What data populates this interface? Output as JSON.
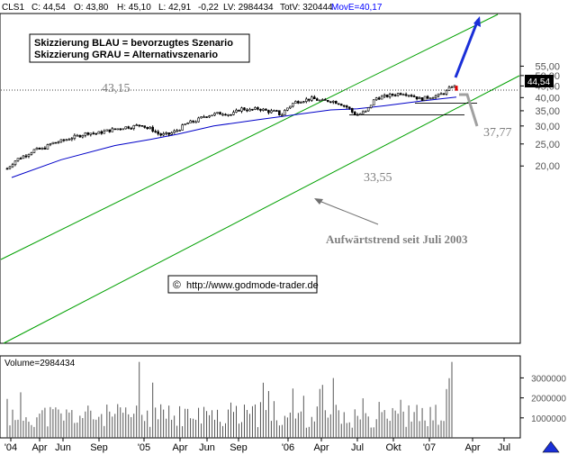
{
  "header": {
    "symbol": "CLS1",
    "close": "C: 44,54",
    "open": "O: 43,80",
    "high": "H: 45,10",
    "low": "L: 42,91",
    "change": "-0,22",
    "lv": "LV: 2984434",
    "totv": "TotV: 320444",
    "move": "MovE=40,17"
  },
  "legend": {
    "line1": "Skizzierung BLAU = bevorzugtes Szenario",
    "line2": "Skizzierung GRAU = Alternativszenario"
  },
  "annotations": {
    "level_4315": "43,15",
    "level_3777": "37,77",
    "level_3355": "33,55",
    "trend": "Aufwärtstrend seit Juli 2003",
    "copyright": "http://www.godmode-trader.de",
    "last_price": "44,54"
  },
  "volume_label": "Volume=2984434",
  "colors": {
    "channel": "#00a000",
    "ma": "#0000c8",
    "blue_scenario": "#1a2fd8",
    "grey_scenario": "#a0a0a0",
    "candle": "#000000",
    "last_badge": "#000000",
    "red_mark": "#e00000"
  },
  "chart_data": [
    {
      "type": "candlestick",
      "scale": "log",
      "x_tick_labels": [
        "'04",
        "Apr",
        "Jun",
        "Sep",
        "'05",
        "Apr",
        "Jun",
        "Sep",
        "'06",
        "Apr",
        "Jul",
        "Okt",
        "'07",
        "Apr",
        "Jul"
      ],
      "y_tick_labels": [
        "55,00",
        "50,00",
        "45,00",
        "40,00",
        "35,00",
        "30,00",
        "25,00",
        "20,00"
      ],
      "y_ticks": [
        55,
        50,
        45,
        40,
        35,
        30,
        25,
        20
      ],
      "ylim": [
        18.3,
        57.5
      ],
      "horizontal_levels": [
        43.15,
        37.77,
        33.55
      ],
      "moving_average_last": 40.17,
      "last_close": 44.54,
      "series": [
        {
          "name": "CLS1",
          "points": [
            [
              0,
              19.5
            ],
            [
              10,
              21.3
            ],
            [
              20,
              22.3
            ],
            [
              30,
              23.5
            ],
            [
              40,
              23.8
            ],
            [
              50,
              25.2
            ],
            [
              60,
              25.7
            ],
            [
              70,
              26.5
            ],
            [
              80,
              27.2
            ],
            [
              90,
              28.0
            ],
            [
              100,
              27.8
            ],
            [
              110,
              28.5
            ],
            [
              120,
              29.0
            ],
            [
              130,
              29.6
            ],
            [
              140,
              29.8
            ],
            [
              150,
              30.5
            ],
            [
              155,
              29.3
            ],
            [
              160,
              29.2
            ],
            [
              170,
              27.4
            ],
            [
              180,
              27.6
            ],
            [
              190,
              28.8
            ],
            [
              200,
              30.8
            ],
            [
              210,
              31.6
            ],
            [
              220,
              33.2
            ],
            [
              230,
              33.8
            ],
            [
              240,
              34.2
            ],
            [
              250,
              33.6
            ],
            [
              260,
              35.8
            ],
            [
              270,
              35.2
            ],
            [
              280,
              35.8
            ],
            [
              290,
              34.8
            ],
            [
              300,
              34.6
            ],
            [
              305,
              33.3
            ],
            [
              310,
              35.5
            ],
            [
              320,
              38.2
            ],
            [
              330,
              39.0
            ],
            [
              340,
              39.6
            ],
            [
              350,
              38.6
            ],
            [
              360,
              38.8
            ],
            [
              370,
              37.8
            ],
            [
              380,
              36.0
            ],
            [
              385,
              34.2
            ],
            [
              390,
              33.6
            ],
            [
              400,
              34.8
            ],
            [
              410,
              39.8
            ],
            [
              420,
              40.4
            ],
            [
              430,
              41.2
            ],
            [
              440,
              42.0
            ],
            [
              450,
              41.0
            ],
            [
              460,
              39.3
            ],
            [
              470,
              40.3
            ],
            [
              480,
              40.8
            ],
            [
              490,
              42.8
            ],
            [
              495,
              45.0
            ],
            [
              500,
              44.54
            ]
          ]
        },
        {
          "name": "MA",
          "points": [
            [
              5,
              17.8
            ],
            [
              60,
              21.3
            ],
            [
              120,
              24.6
            ],
            [
              160,
              26.2
            ],
            [
              190,
              27.6
            ],
            [
              230,
              30.0
            ],
            [
              280,
              32.0
            ],
            [
              320,
              33.6
            ],
            [
              360,
              35.3
            ],
            [
              390,
              35.7
            ],
            [
              420,
              36.8
            ],
            [
              460,
              38.6
            ],
            [
              500,
              40.17
            ]
          ]
        }
      ]
    },
    {
      "type": "bar",
      "label": "Volume",
      "y_tick_labels": [
        "3000000",
        "2000000",
        "1000000"
      ],
      "y_ticks": [
        3000000,
        2000000,
        1000000
      ],
      "ylim": [
        0,
        4100000
      ],
      "last": 2984434
    }
  ]
}
